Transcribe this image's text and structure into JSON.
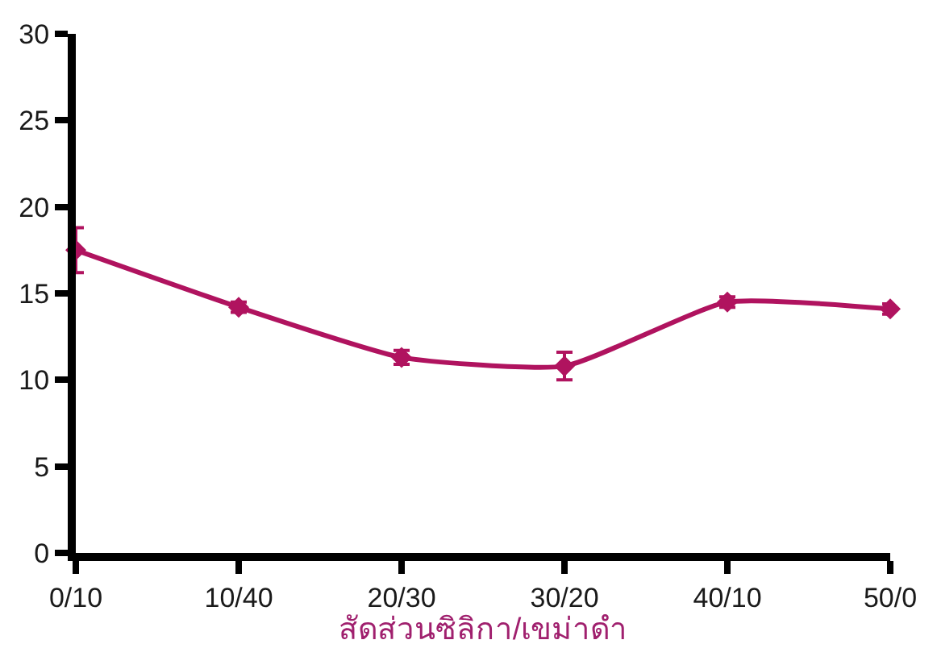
{
  "chart_data": {
    "type": "line",
    "xlabel": "สัดส่วนซิลิกา/เขม่าดำ",
    "categories": [
      "0/10",
      "10/40",
      "20/30",
      "30/20",
      "40/10",
      "50/0"
    ],
    "values": [
      17.5,
      14.2,
      11.3,
      10.8,
      14.5,
      14.1
    ],
    "errors": [
      1.3,
      0.3,
      0.4,
      0.8,
      0.3,
      0.3
    ],
    "color": "#b0135f",
    "ylim": [
      0,
      30
    ],
    "yticks": [
      0,
      5,
      10,
      15,
      20,
      25,
      30
    ],
    "marker": "diamond",
    "line_style": "solid"
  }
}
